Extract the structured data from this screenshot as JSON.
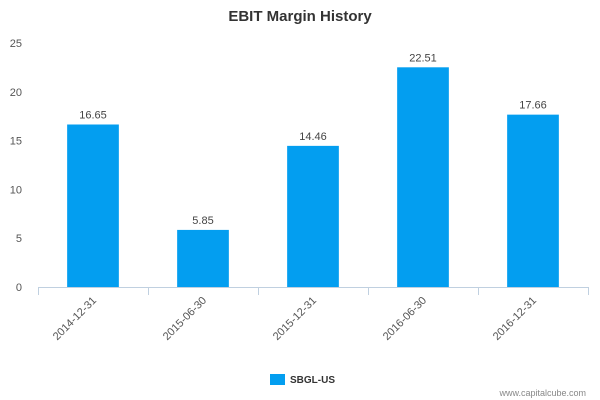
{
  "chart_data": {
    "type": "bar",
    "title": "EBIT Margin History",
    "categories": [
      "2014-12-31",
      "2015-06-30",
      "2015-12-31",
      "2016-06-30",
      "2016-12-31"
    ],
    "series": [
      {
        "name": "SBGL-US",
        "values": [
          16.65,
          5.85,
          14.46,
          22.51,
          17.66
        ]
      }
    ],
    "data_labels": [
      "16.65",
      "5.85",
      "14.46",
      "22.51",
      "17.66"
    ],
    "y_ticks": [
      "0",
      "5",
      "10",
      "15",
      "20",
      "25"
    ],
    "ylim": [
      0,
      25
    ],
    "grid": false,
    "legend_position": "bottom-center",
    "colors": {
      "bar": "#039ef0",
      "axis": "#c0d0e0"
    }
  },
  "credit": "www.capitalcube.com"
}
